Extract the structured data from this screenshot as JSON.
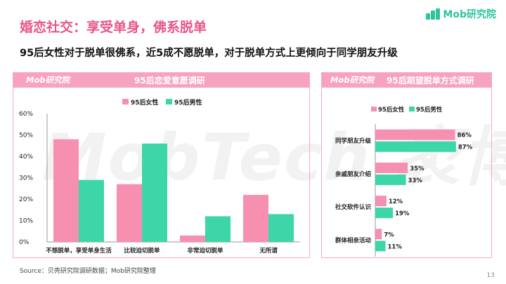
{
  "brand": {
    "logo_text": "Mob研究院",
    "accent": "#e8558a",
    "teal": "#3dd6a9",
    "pink": "#f78fb0"
  },
  "header": {
    "title": "婚恋社交：享受单身，佛系脱单",
    "subtitle": "95后女性对于脱单很佛系，近5成不愿脱单，对于脱单方式上更倾向于同学朋友升级"
  },
  "watermark": "MobTech 袤博",
  "left_panel": {
    "logo": "Mob研究院",
    "title": "95后恋爱意愿调研"
  },
  "right_panel": {
    "logo": "Mob研究院",
    "title": "95后期望脱单方式调研"
  },
  "chart_data": [
    {
      "type": "bar",
      "title": "95后恋爱意愿调研",
      "categories": [
        "不想脱单，享受单身生活",
        "比较迫切脱单",
        "非常迫切脱单",
        "无所谓"
      ],
      "series": [
        {
          "name": "95后女性",
          "color": "#f78fb0",
          "values": [
            48,
            27,
            3,
            22
          ]
        },
        {
          "name": "95后男性",
          "color": "#3dd6a9",
          "values": [
            29,
            46,
            12,
            13
          ]
        }
      ],
      "ylim": [
        0,
        60
      ],
      "yticks": [
        "0%",
        "10%",
        "20%",
        "30%",
        "40%",
        "50%",
        "60%"
      ],
      "unit": "%",
      "legend": "top-center",
      "grid": false
    },
    {
      "type": "bar",
      "orientation": "horizontal",
      "title": "95后期望脱单方式调研",
      "categories": [
        "同学朋友升级",
        "亲戚朋友介绍",
        "社交软件认识",
        "群体相亲活动"
      ],
      "series": [
        {
          "name": "95后女性",
          "color": "#f78fb0",
          "values": [
            86,
            35,
            12,
            7
          ]
        },
        {
          "name": "95后男性",
          "color": "#3dd6a9",
          "values": [
            87,
            33,
            19,
            11
          ]
        }
      ],
      "xlim": [
        0,
        100
      ],
      "unit": "%",
      "legend": "top-left",
      "grid": false
    }
  ],
  "footer": {
    "source": "Source：贝壳研究院调研数据；Mob研究院整理",
    "page": "13"
  }
}
